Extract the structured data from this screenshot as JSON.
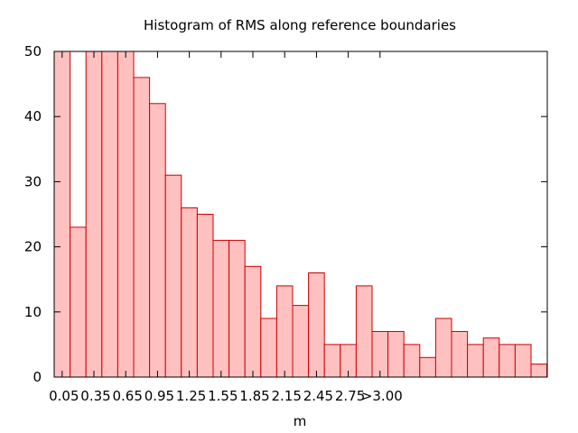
{
  "chart_data": {
    "type": "bar",
    "title": "Histogram of RMS along reference boundaries",
    "xlabel": "m",
    "ylabel": "",
    "ylim": [
      0,
      50
    ],
    "yticks": [
      0,
      10,
      20,
      30,
      40,
      50
    ],
    "xtick_labels": [
      "0.05",
      "0.35",
      "0.65",
      "0.95",
      "1.25",
      "1.55",
      "1.85",
      "2.15",
      "2.45",
      "2.75",
      ">3.00"
    ],
    "grid": false,
    "bar_fill": "#ffc0c0",
    "bar_stroke": "#cc0000",
    "values": [
      50,
      23,
      50,
      50,
      50,
      46,
      42,
      31,
      26,
      25,
      21,
      21,
      17,
      9,
      14,
      11,
      16,
      5,
      5,
      14,
      7,
      7,
      5,
      3,
      9,
      7,
      5,
      6,
      5,
      5,
      2
    ]
  }
}
